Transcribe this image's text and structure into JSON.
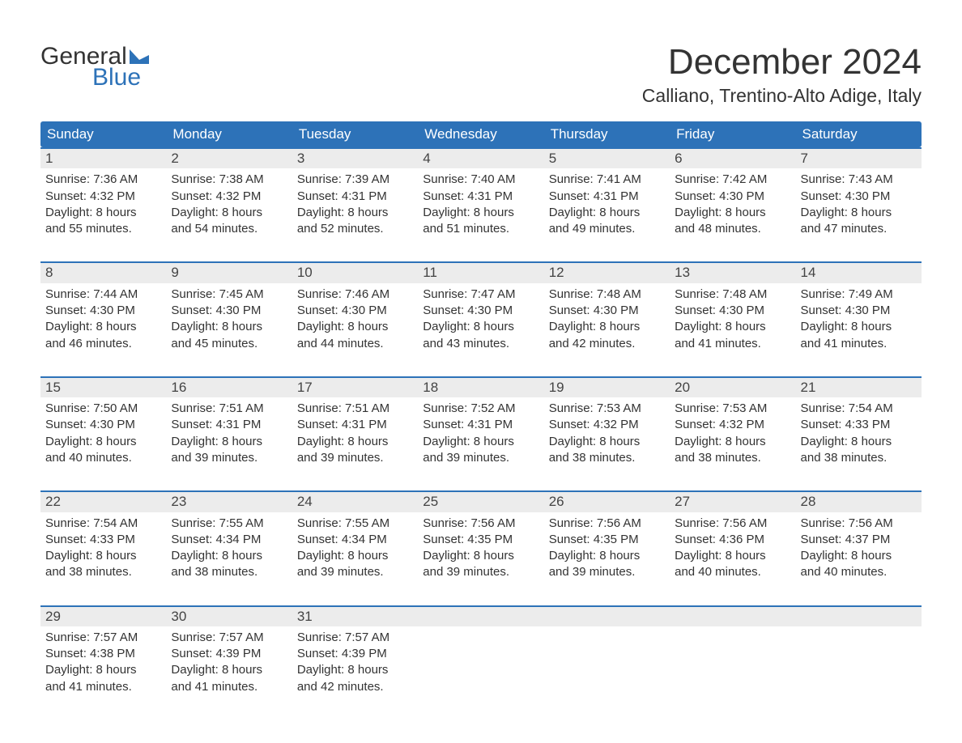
{
  "logo": {
    "word1": "General",
    "word2": "Blue",
    "shape_color": "#2d72b8"
  },
  "title": "December 2024",
  "location": "Calliano, Trentino-Alto Adige, Italy",
  "colors": {
    "header_bg": "#2d72b8",
    "header_text": "#ffffff",
    "daynum_bg": "#ececec",
    "body_text": "#333333",
    "week_border": "#2d72b8"
  },
  "fonts": {
    "title_size_pt": 33,
    "location_size_pt": 17,
    "header_cell_size_pt": 13,
    "daynum_size_pt": 13,
    "body_size_pt": 11
  },
  "weekday_labels": [
    "Sunday",
    "Monday",
    "Tuesday",
    "Wednesday",
    "Thursday",
    "Friday",
    "Saturday"
  ],
  "labels": {
    "sunrise": "Sunrise:",
    "sunset": "Sunset:",
    "daylight_prefix": "Daylight:",
    "hours_word": "hours",
    "and_word": "and",
    "minutes_word": "minutes."
  },
  "weeks": [
    [
      {
        "n": "1",
        "sunrise": "7:36 AM",
        "sunset": "4:32 PM",
        "dl_h": "8",
        "dl_m": "55"
      },
      {
        "n": "2",
        "sunrise": "7:38 AM",
        "sunset": "4:32 PM",
        "dl_h": "8",
        "dl_m": "54"
      },
      {
        "n": "3",
        "sunrise": "7:39 AM",
        "sunset": "4:31 PM",
        "dl_h": "8",
        "dl_m": "52"
      },
      {
        "n": "4",
        "sunrise": "7:40 AM",
        "sunset": "4:31 PM",
        "dl_h": "8",
        "dl_m": "51"
      },
      {
        "n": "5",
        "sunrise": "7:41 AM",
        "sunset": "4:31 PM",
        "dl_h": "8",
        "dl_m": "49"
      },
      {
        "n": "6",
        "sunrise": "7:42 AM",
        "sunset": "4:30 PM",
        "dl_h": "8",
        "dl_m": "48"
      },
      {
        "n": "7",
        "sunrise": "7:43 AM",
        "sunset": "4:30 PM",
        "dl_h": "8",
        "dl_m": "47"
      }
    ],
    [
      {
        "n": "8",
        "sunrise": "7:44 AM",
        "sunset": "4:30 PM",
        "dl_h": "8",
        "dl_m": "46"
      },
      {
        "n": "9",
        "sunrise": "7:45 AM",
        "sunset": "4:30 PM",
        "dl_h": "8",
        "dl_m": "45"
      },
      {
        "n": "10",
        "sunrise": "7:46 AM",
        "sunset": "4:30 PM",
        "dl_h": "8",
        "dl_m": "44"
      },
      {
        "n": "11",
        "sunrise": "7:47 AM",
        "sunset": "4:30 PM",
        "dl_h": "8",
        "dl_m": "43"
      },
      {
        "n": "12",
        "sunrise": "7:48 AM",
        "sunset": "4:30 PM",
        "dl_h": "8",
        "dl_m": "42"
      },
      {
        "n": "13",
        "sunrise": "7:48 AM",
        "sunset": "4:30 PM",
        "dl_h": "8",
        "dl_m": "41"
      },
      {
        "n": "14",
        "sunrise": "7:49 AM",
        "sunset": "4:30 PM",
        "dl_h": "8",
        "dl_m": "41"
      }
    ],
    [
      {
        "n": "15",
        "sunrise": "7:50 AM",
        "sunset": "4:30 PM",
        "dl_h": "8",
        "dl_m": "40"
      },
      {
        "n": "16",
        "sunrise": "7:51 AM",
        "sunset": "4:31 PM",
        "dl_h": "8",
        "dl_m": "39"
      },
      {
        "n": "17",
        "sunrise": "7:51 AM",
        "sunset": "4:31 PM",
        "dl_h": "8",
        "dl_m": "39"
      },
      {
        "n": "18",
        "sunrise": "7:52 AM",
        "sunset": "4:31 PM",
        "dl_h": "8",
        "dl_m": "39"
      },
      {
        "n": "19",
        "sunrise": "7:53 AM",
        "sunset": "4:32 PM",
        "dl_h": "8",
        "dl_m": "38"
      },
      {
        "n": "20",
        "sunrise": "7:53 AM",
        "sunset": "4:32 PM",
        "dl_h": "8",
        "dl_m": "38"
      },
      {
        "n": "21",
        "sunrise": "7:54 AM",
        "sunset": "4:33 PM",
        "dl_h": "8",
        "dl_m": "38"
      }
    ],
    [
      {
        "n": "22",
        "sunrise": "7:54 AM",
        "sunset": "4:33 PM",
        "dl_h": "8",
        "dl_m": "38"
      },
      {
        "n": "23",
        "sunrise": "7:55 AM",
        "sunset": "4:34 PM",
        "dl_h": "8",
        "dl_m": "38"
      },
      {
        "n": "24",
        "sunrise": "7:55 AM",
        "sunset": "4:34 PM",
        "dl_h": "8",
        "dl_m": "39"
      },
      {
        "n": "25",
        "sunrise": "7:56 AM",
        "sunset": "4:35 PM",
        "dl_h": "8",
        "dl_m": "39"
      },
      {
        "n": "26",
        "sunrise": "7:56 AM",
        "sunset": "4:35 PM",
        "dl_h": "8",
        "dl_m": "39"
      },
      {
        "n": "27",
        "sunrise": "7:56 AM",
        "sunset": "4:36 PM",
        "dl_h": "8",
        "dl_m": "40"
      },
      {
        "n": "28",
        "sunrise": "7:56 AM",
        "sunset": "4:37 PM",
        "dl_h": "8",
        "dl_m": "40"
      }
    ],
    [
      {
        "n": "29",
        "sunrise": "7:57 AM",
        "sunset": "4:38 PM",
        "dl_h": "8",
        "dl_m": "41"
      },
      {
        "n": "30",
        "sunrise": "7:57 AM",
        "sunset": "4:39 PM",
        "dl_h": "8",
        "dl_m": "41"
      },
      {
        "n": "31",
        "sunrise": "7:57 AM",
        "sunset": "4:39 PM",
        "dl_h": "8",
        "dl_m": "42"
      },
      null,
      null,
      null,
      null
    ]
  ]
}
